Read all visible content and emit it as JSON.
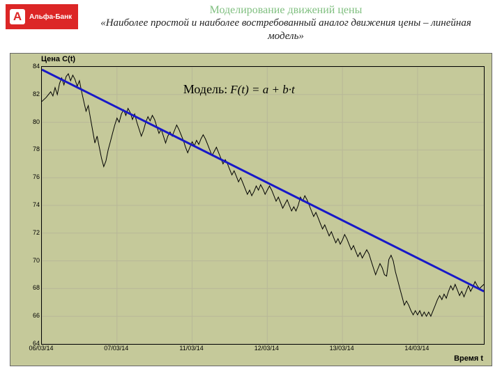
{
  "header": {
    "logo_letter": "A",
    "logo_text": "Альфа-Банк",
    "title_main": "Моделирование движений цены",
    "title_sub": "«Наиболее простой и наиболее востребованный  аналог движения цены – линейная  модель»"
  },
  "chart": {
    "type": "line",
    "y_axis_title": "Цена C(t)",
    "x_axis_title": "Время t",
    "background_color": "#c5c99a",
    "plot_bg": "#c5c99a",
    "grid_color": "#b8b898",
    "ylim": [
      64,
      84
    ],
    "y_ticks": [
      64,
      66,
      68,
      70,
      72,
      74,
      76,
      78,
      80,
      82,
      84
    ],
    "x_ticks": [
      "06/03/14",
      "07/03/14",
      "11/03/14",
      "12/03/14",
      "13/03/14",
      "14/03/14"
    ],
    "x_tick_positions": [
      0,
      0.17,
      0.34,
      0.51,
      0.68,
      0.85
    ],
    "trend_line": {
      "color": "#1818c8",
      "width": 3,
      "x1": 0,
      "y1": 83.8,
      "x2": 1.0,
      "y2": 67.8
    },
    "price_series": {
      "color": "#000000",
      "width": 1,
      "data": [
        [
          0.0,
          81.5
        ],
        [
          0.01,
          81.8
        ],
        [
          0.02,
          82.2
        ],
        [
          0.025,
          81.9
        ],
        [
          0.03,
          82.5
        ],
        [
          0.035,
          82.0
        ],
        [
          0.04,
          82.8
        ],
        [
          0.045,
          83.2
        ],
        [
          0.05,
          82.7
        ],
        [
          0.055,
          83.3
        ],
        [
          0.06,
          83.5
        ],
        [
          0.065,
          83.0
        ],
        [
          0.07,
          83.4
        ],
        [
          0.075,
          83.1
        ],
        [
          0.08,
          82.6
        ],
        [
          0.085,
          83.0
        ],
        [
          0.09,
          82.2
        ],
        [
          0.095,
          81.5
        ],
        [
          0.1,
          80.8
        ],
        [
          0.105,
          81.2
        ],
        [
          0.11,
          80.3
        ],
        [
          0.115,
          79.4
        ],
        [
          0.12,
          78.5
        ],
        [
          0.125,
          79.0
        ],
        [
          0.13,
          78.2
        ],
        [
          0.135,
          77.4
        ],
        [
          0.14,
          76.8
        ],
        [
          0.145,
          77.2
        ],
        [
          0.15,
          78.0
        ],
        [
          0.155,
          78.6
        ],
        [
          0.16,
          79.2
        ],
        [
          0.165,
          79.8
        ],
        [
          0.17,
          80.3
        ],
        [
          0.175,
          80.0
        ],
        [
          0.18,
          80.6
        ],
        [
          0.185,
          80.9
        ],
        [
          0.19,
          80.5
        ],
        [
          0.195,
          81.0
        ],
        [
          0.2,
          80.7
        ],
        [
          0.205,
          80.2
        ],
        [
          0.21,
          80.6
        ],
        [
          0.215,
          80.0
        ],
        [
          0.22,
          79.5
        ],
        [
          0.225,
          79.0
        ],
        [
          0.23,
          79.4
        ],
        [
          0.235,
          80.0
        ],
        [
          0.24,
          80.4
        ],
        [
          0.245,
          80.1
        ],
        [
          0.25,
          80.5
        ],
        [
          0.255,
          80.2
        ],
        [
          0.26,
          79.7
        ],
        [
          0.265,
          79.2
        ],
        [
          0.27,
          79.5
        ],
        [
          0.275,
          79.0
        ],
        [
          0.28,
          78.5
        ],
        [
          0.285,
          79.0
        ],
        [
          0.29,
          79.3
        ],
        [
          0.295,
          79.0
        ],
        [
          0.3,
          79.4
        ],
        [
          0.305,
          79.8
        ],
        [
          0.31,
          79.5
        ],
        [
          0.315,
          79.1
        ],
        [
          0.32,
          78.7
        ],
        [
          0.325,
          78.2
        ],
        [
          0.33,
          77.8
        ],
        [
          0.335,
          78.2
        ],
        [
          0.34,
          78.6
        ],
        [
          0.345,
          78.3
        ],
        [
          0.35,
          78.7
        ],
        [
          0.355,
          78.4
        ],
        [
          0.36,
          78.8
        ],
        [
          0.365,
          79.1
        ],
        [
          0.37,
          78.8
        ],
        [
          0.375,
          78.4
        ],
        [
          0.38,
          78.0
        ],
        [
          0.385,
          77.6
        ],
        [
          0.39,
          77.9
        ],
        [
          0.395,
          78.2
        ],
        [
          0.4,
          77.8
        ],
        [
          0.405,
          77.4
        ],
        [
          0.41,
          77.0
        ],
        [
          0.415,
          77.3
        ],
        [
          0.42,
          77.0
        ],
        [
          0.425,
          76.6
        ],
        [
          0.43,
          76.2
        ],
        [
          0.435,
          76.5
        ],
        [
          0.44,
          76.1
        ],
        [
          0.445,
          75.7
        ],
        [
          0.45,
          76.0
        ],
        [
          0.455,
          75.6
        ],
        [
          0.46,
          75.2
        ],
        [
          0.465,
          74.8
        ],
        [
          0.47,
          75.1
        ],
        [
          0.475,
          74.7
        ],
        [
          0.48,
          75.0
        ],
        [
          0.485,
          75.4
        ],
        [
          0.49,
          75.1
        ],
        [
          0.495,
          75.5
        ],
        [
          0.5,
          75.2
        ],
        [
          0.505,
          74.8
        ],
        [
          0.51,
          75.1
        ],
        [
          0.515,
          75.4
        ],
        [
          0.52,
          75.1
        ],
        [
          0.525,
          74.7
        ],
        [
          0.53,
          74.3
        ],
        [
          0.535,
          74.6
        ],
        [
          0.54,
          74.2
        ],
        [
          0.545,
          73.8
        ],
        [
          0.55,
          74.1
        ],
        [
          0.555,
          74.4
        ],
        [
          0.56,
          74.0
        ],
        [
          0.565,
          73.6
        ],
        [
          0.57,
          73.9
        ],
        [
          0.575,
          73.6
        ],
        [
          0.58,
          74.0
        ],
        [
          0.585,
          74.6
        ],
        [
          0.59,
          74.3
        ],
        [
          0.595,
          74.7
        ],
        [
          0.6,
          74.4
        ],
        [
          0.605,
          74.0
        ],
        [
          0.61,
          73.6
        ],
        [
          0.615,
          73.2
        ],
        [
          0.62,
          73.5
        ],
        [
          0.625,
          73.1
        ],
        [
          0.63,
          72.7
        ],
        [
          0.635,
          72.3
        ],
        [
          0.64,
          72.6
        ],
        [
          0.645,
          72.2
        ],
        [
          0.65,
          71.8
        ],
        [
          0.655,
          72.1
        ],
        [
          0.66,
          71.7
        ],
        [
          0.665,
          71.3
        ],
        [
          0.67,
          71.6
        ],
        [
          0.675,
          71.2
        ],
        [
          0.68,
          71.5
        ],
        [
          0.685,
          71.9
        ],
        [
          0.69,
          71.6
        ],
        [
          0.695,
          71.2
        ],
        [
          0.7,
          70.8
        ],
        [
          0.705,
          71.1
        ],
        [
          0.71,
          70.7
        ],
        [
          0.715,
          70.3
        ],
        [
          0.72,
          70.6
        ],
        [
          0.725,
          70.2
        ],
        [
          0.73,
          70.5
        ],
        [
          0.735,
          70.8
        ],
        [
          0.74,
          70.5
        ],
        [
          0.745,
          70.0
        ],
        [
          0.75,
          69.5
        ],
        [
          0.755,
          69.0
        ],
        [
          0.76,
          69.4
        ],
        [
          0.765,
          69.8
        ],
        [
          0.77,
          69.5
        ],
        [
          0.775,
          69.0
        ],
        [
          0.78,
          68.9
        ],
        [
          0.785,
          70.1
        ],
        [
          0.79,
          70.4
        ],
        [
          0.795,
          70.0
        ],
        [
          0.8,
          69.2
        ],
        [
          0.805,
          68.6
        ],
        [
          0.81,
          68.0
        ],
        [
          0.815,
          67.4
        ],
        [
          0.82,
          66.8
        ],
        [
          0.825,
          67.1
        ],
        [
          0.83,
          66.8
        ],
        [
          0.835,
          66.4
        ],
        [
          0.84,
          66.1
        ],
        [
          0.845,
          66.4
        ],
        [
          0.85,
          66.1
        ],
        [
          0.855,
          66.4
        ],
        [
          0.86,
          66.0
        ],
        [
          0.865,
          66.3
        ],
        [
          0.87,
          66.0
        ],
        [
          0.875,
          66.3
        ],
        [
          0.88,
          66.0
        ],
        [
          0.885,
          66.4
        ],
        [
          0.89,
          66.8
        ],
        [
          0.895,
          67.2
        ],
        [
          0.9,
          67.5
        ],
        [
          0.905,
          67.2
        ],
        [
          0.91,
          67.6
        ],
        [
          0.915,
          67.3
        ],
        [
          0.92,
          67.8
        ],
        [
          0.925,
          68.2
        ],
        [
          0.93,
          67.9
        ],
        [
          0.935,
          68.3
        ],
        [
          0.94,
          67.9
        ],
        [
          0.945,
          67.5
        ],
        [
          0.95,
          67.8
        ],
        [
          0.955,
          67.4
        ],
        [
          0.96,
          67.8
        ],
        [
          0.965,
          68.2
        ],
        [
          0.97,
          67.8
        ],
        [
          0.975,
          68.1
        ],
        [
          0.98,
          68.5
        ],
        [
          0.985,
          68.2
        ],
        [
          0.99,
          68.0
        ],
        [
          1.0,
          68.3
        ]
      ]
    },
    "model_label": {
      "text": "Модель:",
      "formula": "F(t) = a + b·t",
      "x": 0.32,
      "y_top": 22,
      "fontsize": 18,
      "color": "#000000"
    }
  }
}
